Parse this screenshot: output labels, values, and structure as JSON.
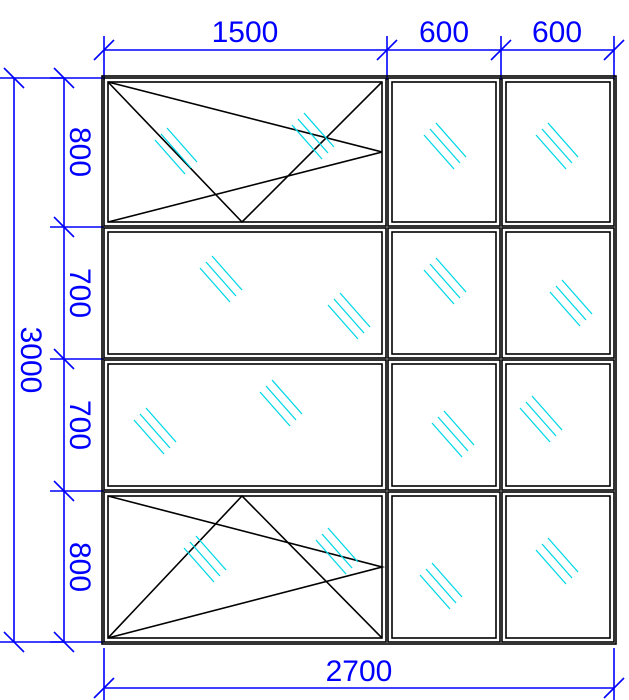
{
  "dimensions": {
    "top": [
      "1500",
      "600",
      "600"
    ],
    "bottom": "2700",
    "left_rows": [
      "800",
      "700",
      "700",
      "800"
    ],
    "left_total": "3000"
  },
  "panels": [
    {
      "row": 1,
      "col": 1,
      "opening": "tilt-turn"
    },
    {
      "row": 1,
      "col": 2,
      "opening": "fixed"
    },
    {
      "row": 1,
      "col": 3,
      "opening": "fixed"
    },
    {
      "row": 2,
      "col": 1,
      "opening": "fixed"
    },
    {
      "row": 2,
      "col": 2,
      "opening": "fixed"
    },
    {
      "row": 2,
      "col": 3,
      "opening": "fixed"
    },
    {
      "row": 3,
      "col": 1,
      "opening": "fixed"
    },
    {
      "row": 3,
      "col": 2,
      "opening": "fixed"
    },
    {
      "row": 3,
      "col": 3,
      "opening": "fixed"
    },
    {
      "row": 4,
      "col": 1,
      "opening": "tilt-turn"
    },
    {
      "row": 4,
      "col": 2,
      "opening": "fixed"
    },
    {
      "row": 4,
      "col": 3,
      "opening": "fixed"
    }
  ],
  "colors": {
    "dimension": "#0000ff",
    "frame": "#000000",
    "glass": "#00d8e8"
  }
}
